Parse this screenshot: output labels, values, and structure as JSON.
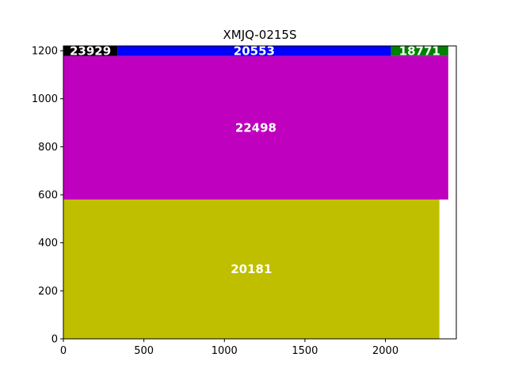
{
  "chart_data": {
    "type": "bar",
    "title": "XMJQ-0215S",
    "xlabel": "",
    "ylabel": "",
    "xlim": [
      0,
      2440
    ],
    "ylim": [
      0,
      1220
    ],
    "xticks": [
      0,
      500,
      1000,
      1500,
      2000
    ],
    "yticks": [
      0,
      200,
      400,
      600,
      800,
      1000,
      1200
    ],
    "grid": false,
    "rectangles": [
      {
        "label": "20181",
        "x0": 0,
        "x1": 2335,
        "y0": 0,
        "y1": 580,
        "color": "#bfbf00"
      },
      {
        "label": "22498",
        "x0": 0,
        "x1": 2390,
        "y0": 580,
        "y1": 1178,
        "color": "#bf00bf"
      },
      {
        "label": "23929",
        "x0": 0,
        "x1": 335,
        "y0": 1178,
        "y1": 1220,
        "color": "#000000"
      },
      {
        "label": "20553",
        "x0": 335,
        "x1": 2035,
        "y0": 1178,
        "y1": 1220,
        "color": "#0000ff"
      },
      {
        "label": "18771",
        "x0": 2035,
        "x1": 2390,
        "y0": 1178,
        "y1": 1220,
        "color": "#008000"
      }
    ]
  }
}
